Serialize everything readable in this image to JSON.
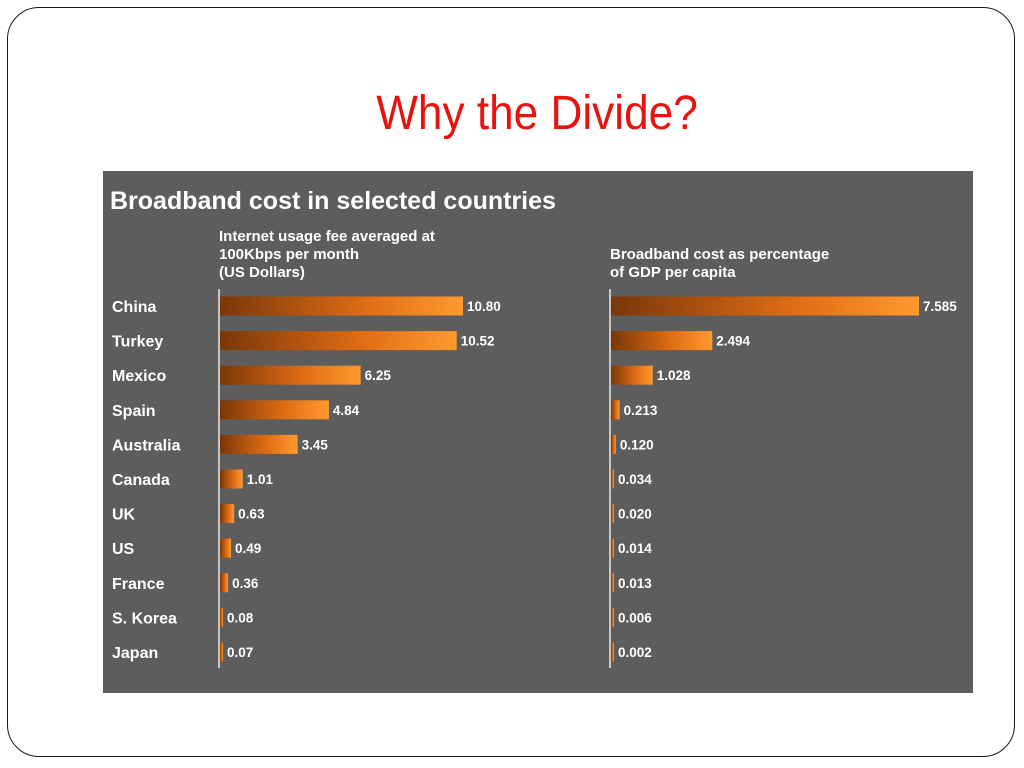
{
  "slide": {
    "title": "Why the Divide?"
  },
  "chart_data": {
    "title": "Broadband cost in selected countries",
    "categories": [
      "China",
      "Turkey",
      "Mexico",
      "Spain",
      "Australia",
      "Canada",
      "UK",
      "US",
      "France",
      "S. Korea",
      "Japan"
    ],
    "panels": [
      {
        "type": "bar",
        "orientation": "horizontal",
        "heading": [
          "Internet usage fee averaged at",
          "100Kbps per month",
          "(US Dollars)"
        ],
        "values": [
          10.8,
          10.52,
          6.25,
          4.84,
          3.45,
          1.01,
          0.63,
          0.49,
          0.36,
          0.08,
          0.07
        ],
        "labels": [
          "10.80",
          "10.52",
          "6.25",
          "4.84",
          "3.45",
          "1.01",
          "0.63",
          "0.49",
          "0.36",
          "0.08",
          "0.07"
        ]
      },
      {
        "type": "bar",
        "orientation": "horizontal",
        "heading": [
          "Broadband cost as percentage",
          "of GDP per capita"
        ],
        "values": [
          7.585,
          2.494,
          1.028,
          0.213,
          0.12,
          0.034,
          0.02,
          0.014,
          0.013,
          0.006,
          0.002
        ],
        "labels": [
          "7.585",
          "2.494",
          "1.028",
          "0.213",
          "0.120",
          "0.034",
          "0.020",
          "0.014",
          "0.013",
          "0.006",
          "0.002"
        ]
      }
    ],
    "colors": {
      "background": "#5d5d5d",
      "bar_dark": "#7a3708",
      "bar_light": "#ff9a2e",
      "text": "#ffffff",
      "axis": "#e8e8e8"
    }
  }
}
